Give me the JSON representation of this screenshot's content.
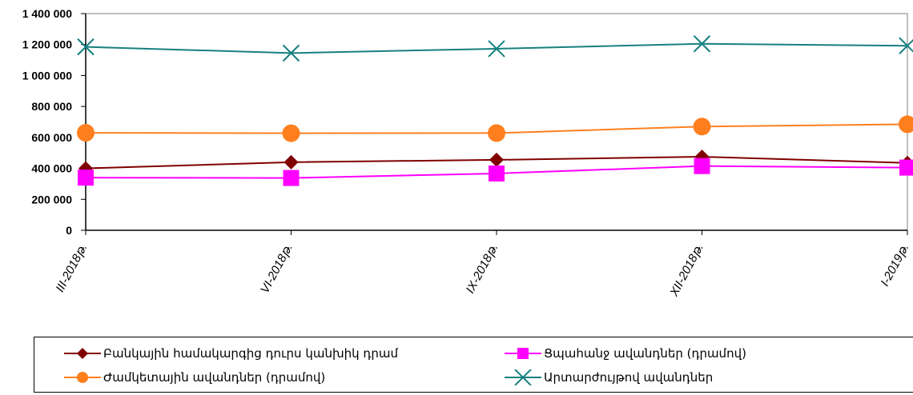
{
  "chart_data": {
    "type": "line",
    "categories": [
      "III-2018թ.",
      "VI-2018թ.",
      "IX-2018թ.",
      "XII-2018թ.",
      "I-2019թ."
    ],
    "y_ticks": [
      "0",
      "200 000",
      "400 000",
      "600 000",
      "800 000",
      "1 000 000",
      "1 200 000",
      "1 400 000"
    ],
    "ylim": [
      0,
      1400000
    ],
    "grid": false,
    "legend_position": "bottom",
    "series": [
      {
        "name": "Բանկային համակարգից դուրս կանխիկ դրամ",
        "color": "#800000",
        "marker": "diamond",
        "values": [
          400000,
          440000,
          455000,
          475000,
          435000
        ]
      },
      {
        "name": "Ցպահանջ ավանդներ (դրամով)",
        "color": "#ff00ff",
        "marker": "square",
        "values": [
          340000,
          338000,
          367000,
          415000,
          405000
        ]
      },
      {
        "name": "Ժամկետային ավանդներ (դրամով)",
        "color": "#ff7f1e",
        "marker": "circle",
        "values": [
          630000,
          627000,
          628000,
          670000,
          685000
        ]
      },
      {
        "name": "Արտարժույթով ավանդներ",
        "color": "#178080",
        "marker": "x",
        "values": [
          1185000,
          1145000,
          1173000,
          1205000,
          1192000
        ]
      }
    ]
  }
}
